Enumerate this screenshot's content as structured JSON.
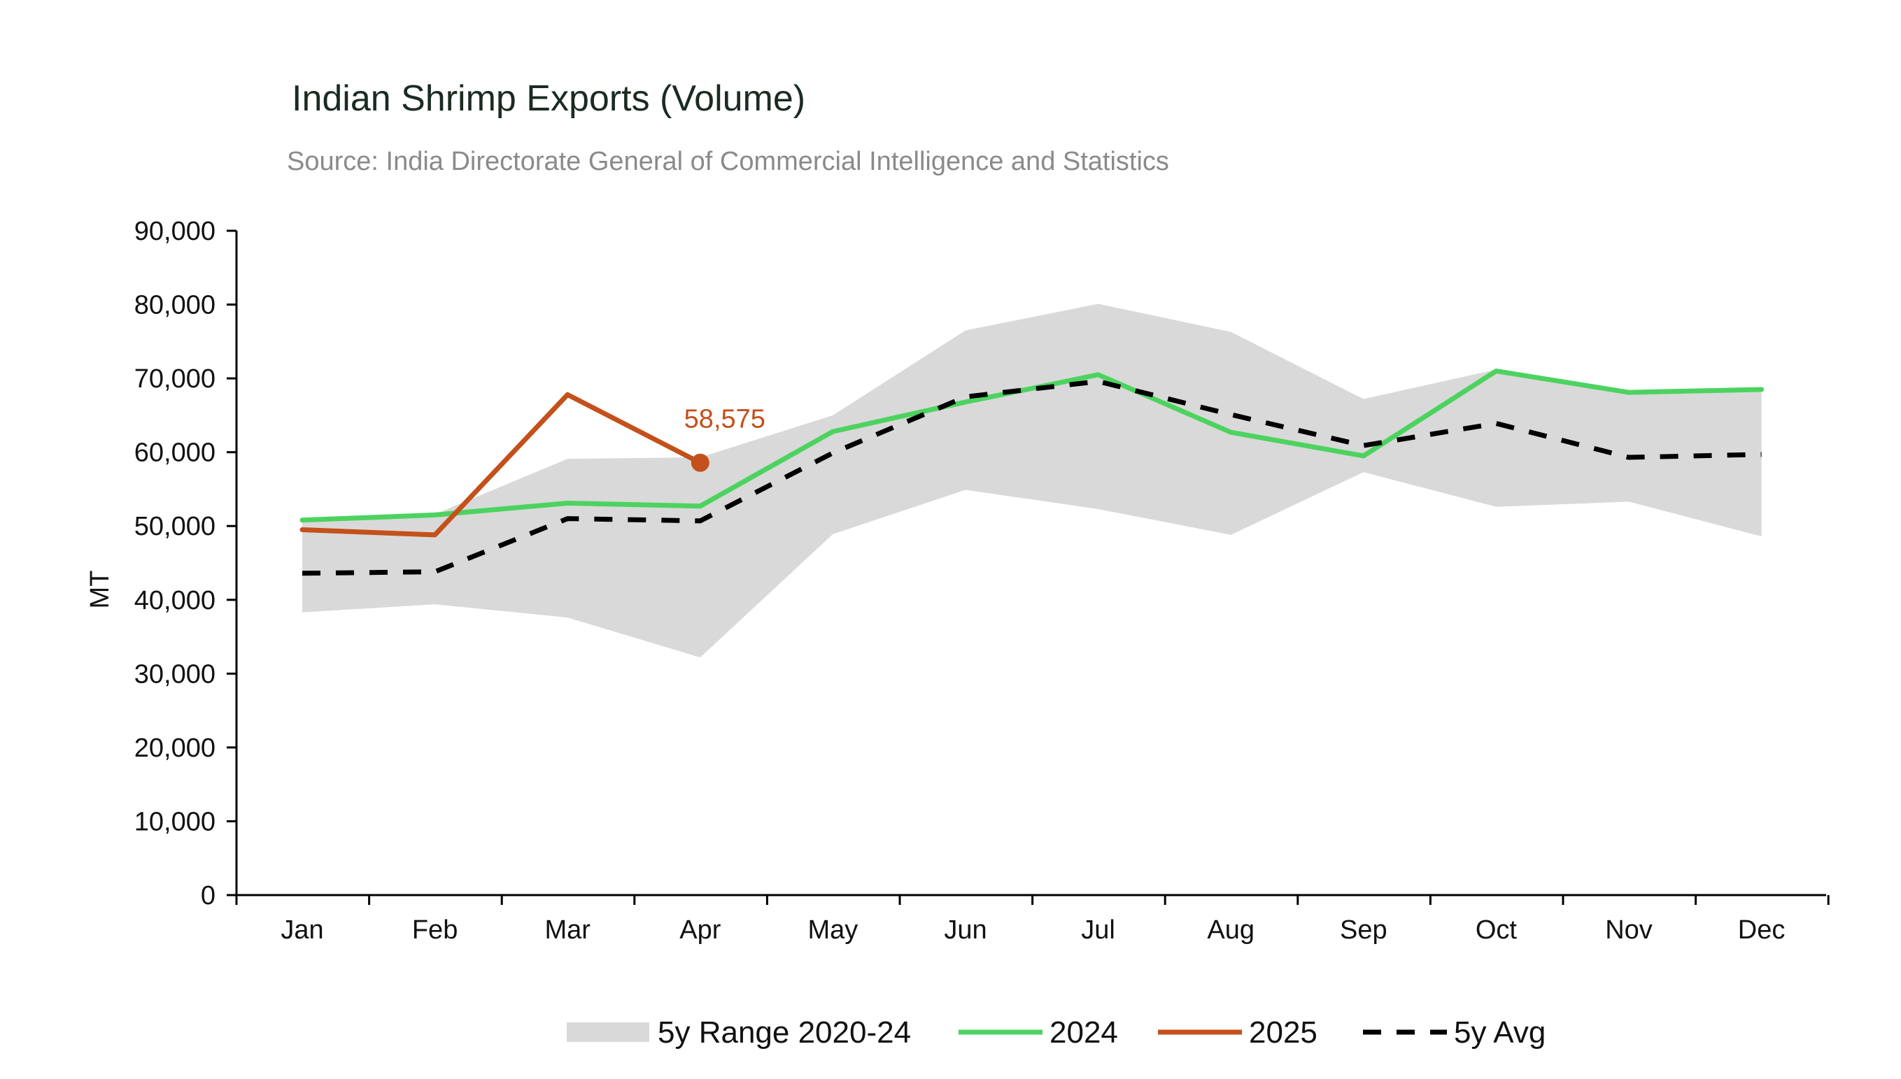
{
  "chart_data": {
    "type": "line",
    "title": "Indian Shrimp Exports (Volume)",
    "subtitle": "Source: India Directorate General of Commercial Intelligence and Statistics",
    "ylabel": "MT",
    "xlabel": "",
    "ylim": [
      0,
      90000
    ],
    "yticks": [
      0,
      10000,
      20000,
      30000,
      40000,
      50000,
      60000,
      70000,
      80000,
      90000
    ],
    "ytick_labels": [
      "0",
      "10,000",
      "20,000",
      "30,000",
      "40,000",
      "50,000",
      "60,000",
      "70,000",
      "80,000",
      "90,000"
    ],
    "grid": false,
    "legend_position": "bottom-center",
    "categories": [
      "Jan",
      "Feb",
      "Mar",
      "Apr",
      "May",
      "Jun",
      "Jul",
      "Aug",
      "Sep",
      "Oct",
      "Nov",
      "Dec"
    ],
    "range_band": {
      "name": "5y Range 2020-24",
      "color": "#d9d9d9",
      "low": [
        38300,
        39400,
        37600,
        32200,
        48900,
        54900,
        52300,
        48800,
        57300,
        52600,
        53300,
        48600
      ],
      "high": [
        50800,
        51600,
        59100,
        59300,
        65000,
        76500,
        80100,
        76300,
        67200,
        71200,
        68000,
        68500
      ]
    },
    "series": [
      {
        "name": "2024",
        "color": "#4cd35f",
        "style": "solid",
        "values": [
          50800,
          51500,
          53100,
          52700,
          62800,
          66800,
          70500,
          62700,
          59500,
          71000,
          68100,
          68500
        ]
      },
      {
        "name": "2025",
        "color": "#c4501b",
        "style": "solid",
        "values": [
          49500,
          48800,
          67800,
          58575,
          null,
          null,
          null,
          null,
          null,
          null,
          null,
          null
        ]
      },
      {
        "name": "5y Avg",
        "color": "#000000",
        "style": "dashed",
        "values": [
          43600,
          43800,
          51000,
          50700,
          59900,
          67500,
          69600,
          65100,
          60900,
          63900,
          59300,
          59700
        ]
      }
    ],
    "annotations": [
      {
        "series": "2025",
        "category": "Apr",
        "value": 58575,
        "text": "58,575",
        "color": "#c4501b"
      }
    ]
  }
}
